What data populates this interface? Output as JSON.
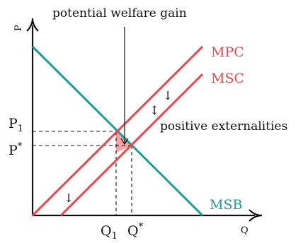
{
  "colors": {
    "axis": "#111111",
    "mpc": "#e5484d",
    "msc": "#e5484d",
    "msb": "#1f9c98",
    "welfare_fill": "#f5a3a3"
  },
  "labels": {
    "top_annotation": "potential welfare gain",
    "y_axis": "P",
    "x_axis": "Q",
    "mpc": "MPC",
    "msc": "MSC",
    "msb": "MSB",
    "externality": "positive externalities",
    "p1": "P",
    "p1_sub": "1",
    "p_star": "P",
    "p_star_sup": "*",
    "q1": "Q",
    "q1_sub": "1",
    "q_star": "Q",
    "q_star_sup": "*"
  },
  "icons": {
    "down_arrow_upper": "↓",
    "down_arrow_lower": "↓",
    "up_down_arrow": "↕"
  }
}
